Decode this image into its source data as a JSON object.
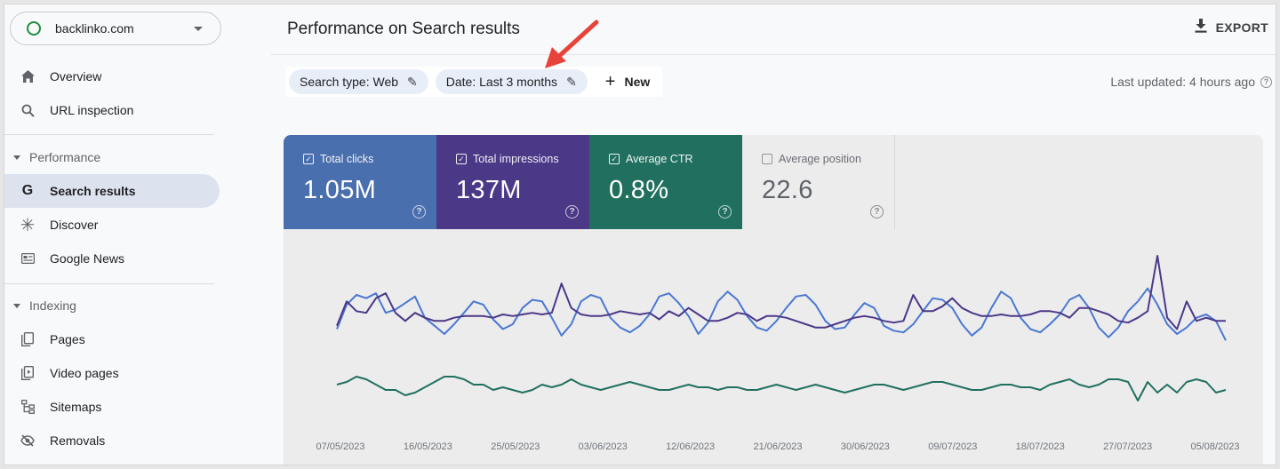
{
  "property": {
    "name": "backlinko.com"
  },
  "sidebar": {
    "top_items": [
      {
        "label": "Overview",
        "icon": "home-icon"
      },
      {
        "label": "URL inspection",
        "icon": "search-icon"
      }
    ],
    "sections": [
      {
        "title": "Performance",
        "items": [
          {
            "label": "Search results",
            "icon": "google-g-icon",
            "active": true
          },
          {
            "label": "Discover",
            "icon": "asterisk-icon"
          },
          {
            "label": "Google News",
            "icon": "news-icon"
          }
        ]
      },
      {
        "title": "Indexing",
        "items": [
          {
            "label": "Pages",
            "icon": "pages-icon"
          },
          {
            "label": "Video pages",
            "icon": "video-pages-icon"
          },
          {
            "label": "Sitemaps",
            "icon": "sitemap-icon"
          },
          {
            "label": "Removals",
            "icon": "eye-off-icon"
          }
        ]
      }
    ]
  },
  "header": {
    "title": "Performance on Search results",
    "export_label": "EXPORT"
  },
  "filters": {
    "search_type": "Search type: Web",
    "date": "Date: Last 3 months",
    "new_label": "New"
  },
  "last_updated": "Last updated: 4 hours ago",
  "metrics": [
    {
      "label": "Total clicks",
      "value": "1.05M",
      "checked": true,
      "color": "#4a6fae"
    },
    {
      "label": "Total impressions",
      "value": "137M",
      "checked": true,
      "color": "#4b3887"
    },
    {
      "label": "Average CTR",
      "value": "0.8%",
      "checked": true,
      "color": "#21705f"
    },
    {
      "label": "Average position",
      "value": "22.6",
      "checked": false,
      "color": "#5f6368"
    }
  ],
  "chart_data": {
    "type": "line",
    "x_tick_labels": [
      "07/05/2023",
      "16/05/2023",
      "25/05/2023",
      "03/06/2023",
      "12/06/2023",
      "21/06/2023",
      "30/06/2023",
      "09/07/2023",
      "18/07/2023",
      "27/07/2023",
      "05/08/2023"
    ],
    "points_per_series": 92,
    "series": [
      {
        "name": "Total clicks",
        "color": "#4a78d0",
        "values": [
          55,
          70,
          76,
          74,
          77,
          65,
          67,
          71,
          75,
          62,
          57,
          52,
          58,
          65,
          72,
          70,
          61,
          55,
          58,
          68,
          73,
          72,
          62,
          51,
          58,
          72,
          76,
          74,
          62,
          56,
          53,
          57,
          64,
          75,
          77,
          71,
          63,
          52,
          59,
          72,
          78,
          73,
          63,
          56,
          54,
          60,
          68,
          75,
          76,
          70,
          60,
          55,
          56,
          64,
          71,
          68,
          57,
          54,
          53,
          58,
          66,
          74,
          73,
          68,
          58,
          51,
          56,
          68,
          78,
          74,
          62,
          55,
          53,
          58,
          64,
          73,
          76,
          68,
          56,
          50,
          56,
          66,
          72,
          80,
          70,
          58,
          52,
          56,
          62,
          64,
          60,
          48
        ]
      },
      {
        "name": "Total impressions",
        "color": "#4b3887",
        "values": [
          57,
          72,
          66,
          65,
          74,
          77,
          65,
          60,
          65,
          62,
          60,
          60,
          62,
          63,
          63,
          63,
          62,
          64,
          63,
          64,
          65,
          64,
          65,
          83,
          68,
          64,
          63,
          63,
          64,
          66,
          65,
          64,
          65,
          61,
          66,
          63,
          68,
          64,
          60,
          60,
          62,
          65,
          64,
          60,
          63,
          63,
          62,
          60,
          58,
          56,
          56,
          58,
          60,
          62,
          63,
          62,
          60,
          59,
          60,
          76,
          66,
          66,
          69,
          74,
          68,
          65,
          63,
          63,
          64,
          63,
          63,
          64,
          66,
          66,
          65,
          62,
          68,
          68,
          66,
          64,
          60,
          59,
          62,
          66,
          100,
          62,
          55,
          72,
          60,
          62,
          60,
          60
        ]
      },
      {
        "name": "Average CTR",
        "color": "#21705f",
        "values": [
          25,
          26,
          28,
          27,
          25,
          23,
          23,
          21,
          22,
          24,
          26,
          28,
          28,
          27,
          25,
          25,
          23,
          24,
          23,
          22,
          23,
          25,
          24,
          25,
          27,
          25,
          24,
          23,
          24,
          25,
          26,
          25,
          24,
          23,
          23,
          24,
          25,
          24,
          24,
          23,
          24,
          24,
          23,
          23,
          24,
          25,
          24,
          23,
          24,
          25,
          24,
          23,
          22,
          23,
          24,
          25,
          25,
          24,
          23,
          24,
          25,
          26,
          26,
          25,
          24,
          23,
          23,
          24,
          25,
          25,
          24,
          24,
          23,
          25,
          26,
          27,
          25,
          24,
          25,
          27,
          27,
          26,
          19,
          26,
          22,
          25,
          22,
          26,
          27,
          26,
          22,
          23
        ]
      }
    ]
  }
}
